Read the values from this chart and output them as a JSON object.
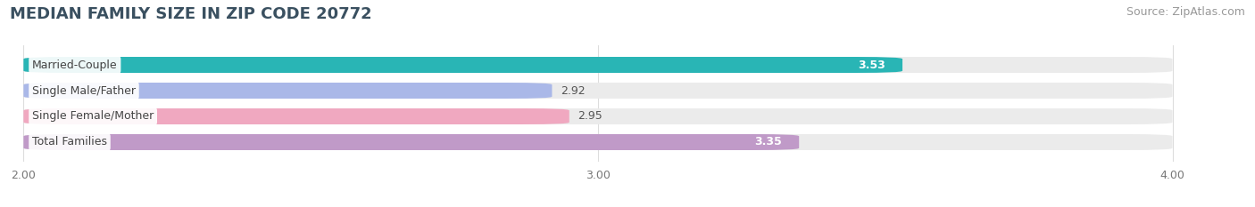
{
  "title": "MEDIAN FAMILY SIZE IN ZIP CODE 20772",
  "source": "Source: ZipAtlas.com",
  "categories": [
    "Married-Couple",
    "Single Male/Father",
    "Single Female/Mother",
    "Total Families"
  ],
  "values": [
    3.53,
    2.92,
    2.95,
    3.35
  ],
  "bar_colors": [
    "#29b5b5",
    "#aab8e8",
    "#f0a8c0",
    "#c09ac8"
  ],
  "value_inside": [
    true,
    false,
    false,
    true
  ],
  "value_colors_inside": [
    "#ffffff",
    "#555555",
    "#555555",
    "#ffffff"
  ],
  "xlim_min": 2.0,
  "xlim_max": 4.0,
  "xticks": [
    2.0,
    3.0,
    4.0
  ],
  "xtick_labels": [
    "2.00",
    "3.00",
    "4.00"
  ],
  "bar_height": 0.62,
  "background_color": "#ffffff",
  "track_color": "#ebebeb",
  "title_fontsize": 13,
  "source_fontsize": 9,
  "label_fontsize": 9,
  "value_fontsize": 9,
  "tick_fontsize": 9,
  "title_color": "#3a5060",
  "source_color": "#999999",
  "label_color": "#444444",
  "grid_color": "#dddddd"
}
